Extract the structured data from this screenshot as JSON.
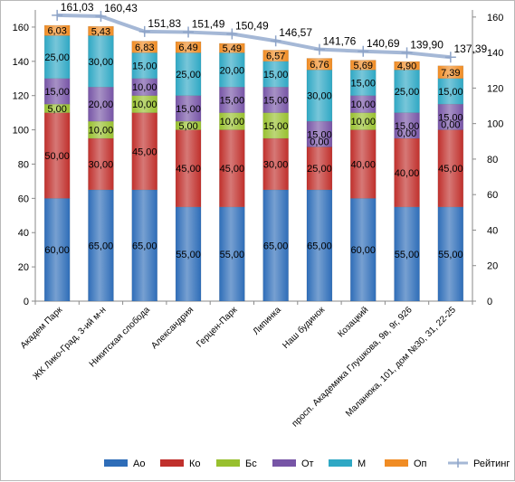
{
  "chart_data": {
    "type": "bar",
    "stacked": true,
    "title": "",
    "categories": [
      "Академ Парк",
      "ЖК Лико-Град, 3-ий м-н",
      "Никитская слобода",
      "Александрия",
      "Герцен-Парк",
      "Липинка",
      "Наш будинок",
      "Козацкий",
      "просп. Академика Глушкова, 9в, 9г, 926",
      "Маланюка, 101, дом №30, 31, 22-25"
    ],
    "series": [
      {
        "name": "Ао",
        "color": "#2e6db8",
        "values": [
          60,
          65,
          65,
          55,
          55,
          65,
          65,
          60,
          55,
          55
        ],
        "labels": [
          "60,00",
          "65,00",
          "65,00",
          "55,00",
          "55,00",
          "65,00",
          "65,00",
          "60,00",
          "55,00",
          "55,00"
        ]
      },
      {
        "name": "Ко",
        "color": "#c0302c",
        "values": [
          50,
          30,
          45,
          45,
          45,
          30,
          25,
          40,
          40,
          45
        ],
        "labels": [
          "50,00",
          "30,00",
          "45,00",
          "45,00",
          "45,00",
          "30,00",
          "25,00",
          "40,00",
          "40,00",
          "45,00"
        ]
      },
      {
        "name": "Бс",
        "color": "#98c02f",
        "values": [
          5,
          10,
          10,
          5,
          10,
          15,
          0,
          10,
          0,
          0
        ],
        "labels": [
          "5,00",
          "10,00",
          "10,00",
          "5,00",
          "10,00",
          "15,00",
          "0,00",
          "10,00",
          "0,00",
          "0,00"
        ]
      },
      {
        "name": "От",
        "color": "#7755a6",
        "values": [
          15,
          20,
          10,
          15,
          15,
          15,
          15,
          10,
          15,
          15
        ],
        "labels": [
          "15,00",
          "20,00",
          "10,00",
          "15,00",
          "15,00",
          "15,00",
          "15,00",
          "10,00",
          "15,00",
          "15,00"
        ]
      },
      {
        "name": "М",
        "color": "#2fa8c4",
        "values": [
          25,
          30,
          15,
          25,
          20,
          15,
          30,
          15,
          25,
          15
        ],
        "labels": [
          "25,00",
          "30,00",
          "15,00",
          "25,00",
          "20,00",
          "15,00",
          "30,00",
          "15,00",
          "25,00",
          "15,00"
        ]
      },
      {
        "name": "Оп",
        "color": "#f08c24",
        "values": [
          6.03,
          5.43,
          6.83,
          6.49,
          5.49,
          6.57,
          6.76,
          5.69,
          4.9,
          7.39
        ],
        "labels": [
          "6,03",
          "5,43",
          "6,83",
          "6,49",
          "5,49",
          "6,57",
          "6,76",
          "5,69",
          "4,90",
          "7,39"
        ]
      }
    ],
    "line": {
      "name": "Рейтинг",
      "axis": "right",
      "color": "#a5b8d6",
      "values": [
        161.03,
        160.43,
        151.83,
        151.49,
        150.49,
        146.57,
        141.76,
        140.69,
        139.9,
        137.39
      ],
      "labels": [
        "161,03",
        "160,43",
        "151,83",
        "151,49",
        "150,49",
        "146,57",
        "141,76",
        "140,69",
        "139,90",
        "137,39"
      ]
    },
    "y_left": {
      "min": 0,
      "max": 170,
      "ticks": [
        0,
        20,
        40,
        60,
        80,
        100,
        120,
        140,
        160
      ]
    },
    "y_right": {
      "min": 0,
      "max": 164,
      "ticks": [
        0,
        20,
        40,
        60,
        80,
        100,
        120,
        140,
        160
      ]
    },
    "legend_position": "bottom",
    "grid": false
  }
}
